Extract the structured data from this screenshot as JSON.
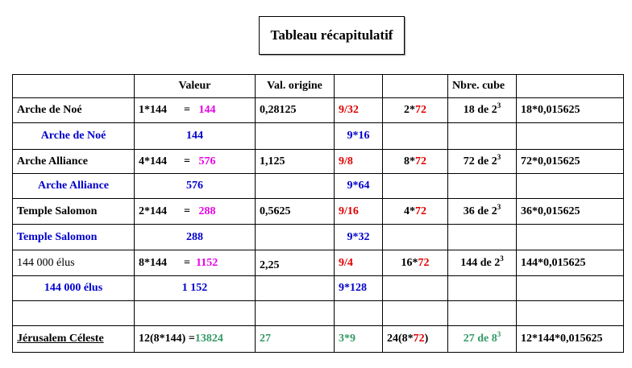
{
  "header": {
    "title": "Tableau récapitulatif"
  },
  "table": {
    "rows": [
      [
        null,
        {
          "align": "center",
          "runs": [
            {
              "text": "Valeur"
            }
          ]
        },
        {
          "align": "center",
          "runs": [
            {
              "text": "Val. origine"
            }
          ]
        },
        null,
        null,
        {
          "runs": [
            {
              "text": "Nbre. cube"
            }
          ]
        },
        null
      ],
      [
        {
          "runs": [
            {
              "text": "Arche de Noé"
            }
          ]
        },
        {
          "runs": [
            {
              "text": "1*144      =   "
            },
            {
              "text": "144",
              "color": "#e600e6"
            }
          ]
        },
        {
          "runs": [
            {
              "text": "0,28125"
            }
          ]
        },
        {
          "color": "#e00000",
          "runs": [
            {
              "text": "9/32"
            }
          ]
        },
        {
          "align": "center",
          "runs": [
            {
              "text": "2*"
            },
            {
              "text": "72",
              "color": "#e00000"
            }
          ]
        },
        {
          "align": "center",
          "runs": [
            {
              "text": "18 de 2"
            },
            {
              "text": "3",
              "sup": true
            }
          ]
        },
        {
          "runs": [
            {
              "text": "18*0,015625"
            }
          ]
        }
      ],
      [
        {
          "align": "center",
          "color": "#0000cc",
          "runs": [
            {
              "text": "Arche de Noé"
            }
          ]
        },
        {
          "align": "center",
          "color": "#0000cc",
          "runs": [
            {
              "text": "144"
            }
          ]
        },
        null,
        {
          "align": "center",
          "color": "#0000cc",
          "runs": [
            {
              "text": "9*16"
            }
          ]
        },
        null,
        null,
        null
      ],
      [
        {
          "runs": [
            {
              "text": "Arche Alliance"
            }
          ]
        },
        {
          "runs": [
            {
              "text": "4*144      =   "
            },
            {
              "text": "576",
              "color": "#e600e6"
            }
          ]
        },
        {
          "runs": [
            {
              "text": "1,125"
            }
          ]
        },
        {
          "color": "#e00000",
          "runs": [
            {
              "text": "9/8"
            }
          ]
        },
        {
          "align": "center",
          "runs": [
            {
              "text": "8*"
            },
            {
              "text": "72",
              "color": "#e00000"
            }
          ]
        },
        {
          "align": "center",
          "runs": [
            {
              "text": "72 de 2"
            },
            {
              "text": "3",
              "sup": true
            }
          ]
        },
        {
          "runs": [
            {
              "text": "72*0,015625"
            }
          ]
        }
      ],
      [
        {
          "align": "center",
          "color": "#0000cc",
          "runs": [
            {
              "text": "Arche Alliance"
            }
          ]
        },
        {
          "align": "center",
          "color": "#0000cc",
          "runs": [
            {
              "text": "576"
            }
          ]
        },
        null,
        {
          "align": "center",
          "color": "#0000cc",
          "runs": [
            {
              "text": "9*64"
            }
          ]
        },
        null,
        null,
        null
      ],
      [
        {
          "runs": [
            {
              "text": "Temple Salomon"
            }
          ]
        },
        {
          "runs": [
            {
              "text": "2*144      =   "
            },
            {
              "text": "288",
              "color": "#e600e6"
            }
          ]
        },
        {
          "runs": [
            {
              "text": "0,5625"
            }
          ]
        },
        {
          "color": "#e00000",
          "runs": [
            {
              "text": "9/16"
            }
          ]
        },
        {
          "align": "center",
          "runs": [
            {
              "text": "4*"
            },
            {
              "text": "72",
              "color": "#e00000"
            }
          ]
        },
        {
          "align": "center",
          "runs": [
            {
              "text": "36 de 2"
            },
            {
              "text": "3",
              "sup": true
            }
          ]
        },
        {
          "runs": [
            {
              "text": "36*0,015625"
            }
          ]
        }
      ],
      [
        {
          "color": "#0000cc",
          "runs": [
            {
              "text": "Temple Salomon"
            }
          ]
        },
        {
          "align": "center",
          "color": "#0000cc",
          "runs": [
            {
              "text": "288"
            }
          ]
        },
        null,
        {
          "align": "center",
          "color": "#0000cc",
          "runs": [
            {
              "text": "9*32"
            }
          ]
        },
        null,
        null,
        null
      ],
      [
        {
          "bold": false,
          "runs": [
            {
              "text": "144 000 élus"
            }
          ]
        },
        {
          "runs": [
            {
              "text": "8*144      =  "
            },
            {
              "text": "1152",
              "color": "#e600e6"
            }
          ]
        },
        {
          "valign": "bottom",
          "runs": [
            {
              "text": "2,25"
            }
          ]
        },
        {
          "color": "#e00000",
          "runs": [
            {
              "text": "9/4"
            }
          ]
        },
        {
          "align": "center",
          "runs": [
            {
              "text": "16*"
            },
            {
              "text": "72",
              "color": "#e00000"
            }
          ]
        },
        {
          "align": "center",
          "runs": [
            {
              "text": "144 de 2"
            },
            {
              "text": "3",
              "sup": true
            }
          ]
        },
        {
          "runs": [
            {
              "text": "144*0,015625"
            }
          ]
        }
      ],
      [
        {
          "align": "center",
          "color": "#0000cc",
          "runs": [
            {
              "text": "144 000 élus"
            }
          ]
        },
        {
          "align": "center",
          "color": "#0000cc",
          "runs": [
            {
              "text": "1 152"
            }
          ]
        },
        null,
        {
          "color": "#0000cc",
          "runs": [
            {
              "text": "9*128"
            }
          ]
        },
        null,
        null,
        null
      ],
      [
        null,
        null,
        null,
        null,
        null,
        null,
        null
      ],
      [
        {
          "underline": true,
          "runs": [
            {
              "text": "Jérusalem Céleste"
            }
          ]
        },
        {
          "runs": [
            {
              "text": "12(8*144) ="
            },
            {
              "text": "13824",
              "color": "#339966"
            }
          ]
        },
        {
          "color": "#339966",
          "runs": [
            {
              "text": "27"
            }
          ]
        },
        {
          "color": "#339966",
          "runs": [
            {
              "text": "3*9"
            }
          ]
        },
        {
          "runs": [
            {
              "text": "24(8*"
            },
            {
              "text": "72",
              "color": "#e00000"
            },
            {
              "text": ")"
            }
          ]
        },
        {
          "align": "center",
          "color": "#339966",
          "runs": [
            {
              "text": "27 de 8"
            },
            {
              "text": "3",
              "sup": true
            }
          ]
        },
        {
          "runs": [
            {
              "text": "12*144*0,015625"
            }
          ]
        }
      ]
    ]
  }
}
